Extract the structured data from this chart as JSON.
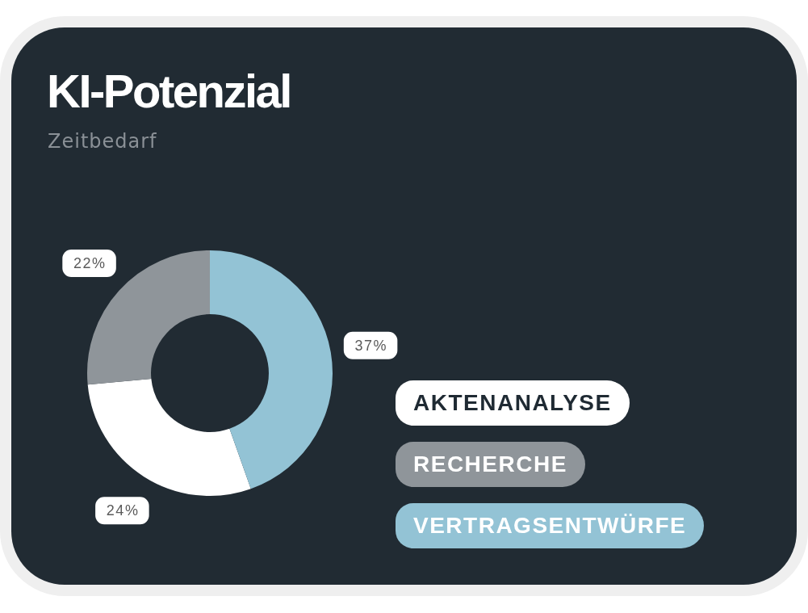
{
  "chart_data": {
    "type": "donut",
    "title": "KI-Potenzial",
    "subtitle": "Zeitbedarf",
    "categories": [
      "AKTENANALYSE",
      "RECHERCHE",
      "VERTRAGSENTWÜRFE"
    ],
    "values": [
      24,
      22,
      37
    ],
    "colors": [
      "#ffffff",
      "#8f959a",
      "#93c3d5"
    ],
    "value_labels": [
      "24%",
      "22%",
      "37%"
    ],
    "legend": "bottom right"
  }
}
